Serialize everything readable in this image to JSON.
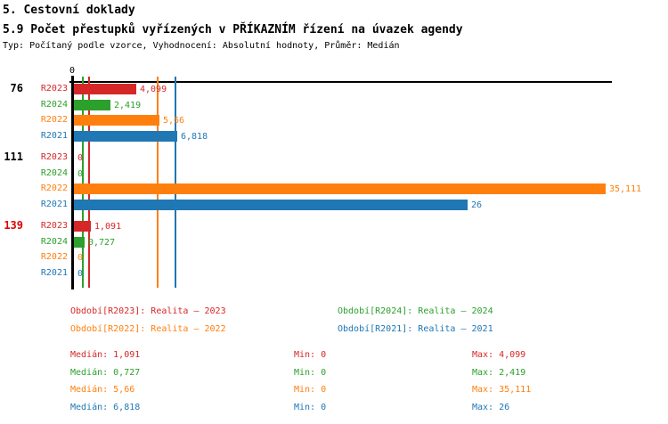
{
  "header": {
    "title_line1": "5. Cestovní doklady",
    "title_line2": "5.9 Počet přestupků vyřízených v PŘÍKAZNÍM řízení na úvazek agendy",
    "meta": "Typ: Počítaný podle vzorce, Vyhodnocení: Absolutní hodnoty, Průměr: Medián"
  },
  "axis": {
    "zero_label": "0"
  },
  "colors": {
    "series": {
      "R2023": "#d62728",
      "R2024": "#2ca02c",
      "R2022": "#ff7f0e",
      "R2021": "#1f77b4"
    },
    "group_label_default": "#000000",
    "group_label_highlight": "#e00000",
    "axis": "#000000"
  },
  "chart_data": {
    "type": "bar",
    "orientation": "horizontal",
    "title": "5.9 Počet přestupků vyřízených v PŘÍKAZNÍM řízení na úvazek agendy",
    "axis_min": 0,
    "value_format": "decimal_comma",
    "series_order": [
      "R2023",
      "R2024",
      "R2022",
      "R2021"
    ],
    "groups": [
      {
        "label": "76",
        "highlight": false,
        "values": {
          "R2023": 4.099,
          "R2024": 2.419,
          "R2022": 5.66,
          "R2021": 6.818
        }
      },
      {
        "label": "111",
        "highlight": false,
        "values": {
          "R2023": 0,
          "R2024": 0,
          "R2022": 35.111,
          "R2021": 26
        }
      },
      {
        "label": "139",
        "highlight": true,
        "values": {
          "R2023": 1.091,
          "R2024": 0.727,
          "R2022": 0,
          "R2021": 0
        }
      }
    ],
    "median_lines": {
      "R2023": 1.091,
      "R2024": 0.727,
      "R2022": 5.66,
      "R2021": 6.818
    }
  },
  "legend": [
    {
      "series": "R2023",
      "label": "Období[R2023]: Realita – 2023"
    },
    {
      "series": "R2024",
      "label": "Období[R2024]: Realita – 2024"
    },
    {
      "series": "R2022",
      "label": "Období[R2022]: Realita – 2022"
    },
    {
      "series": "R2021",
      "label": "Období[R2021]: Realita – 2021"
    }
  ],
  "stats": [
    {
      "series": "R2023",
      "median_label": "Medián: 1,091",
      "min_label": "Min: 0",
      "max_label": "Max: 4,099"
    },
    {
      "series": "R2024",
      "median_label": "Medián: 0,727",
      "min_label": "Min: 0",
      "max_label": "Max: 2,419"
    },
    {
      "series": "R2022",
      "median_label": "Medián: 5,66",
      "min_label": "Min: 0",
      "max_label": "Max: 35,111"
    },
    {
      "series": "R2021",
      "median_label": "Medián: 6,818",
      "min_label": "Min: 0",
      "max_label": "Max: 26"
    }
  ]
}
